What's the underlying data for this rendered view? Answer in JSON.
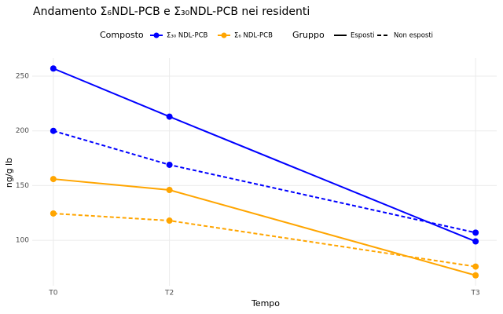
{
  "chart_data": {
    "type": "line",
    "title": "Andamento Σ₆NDL-PCB e Σ₃₀NDL-PCB nei residenti",
    "x_label": "Tempo",
    "y_label": "ng/g lb",
    "color_legend_title": "Composto",
    "linetype_legend_title": "Gruppo",
    "x": [
      0,
      11,
      40
    ],
    "xlim": [
      -2,
      42
    ],
    "xticks": [
      {
        "value": 0,
        "label": "T0"
      },
      {
        "value": 11,
        "label": "T2"
      },
      {
        "value": 40,
        "label": "T3"
      }
    ],
    "ylim": [
      58.5,
      266.5
    ],
    "yticks": [
      100,
      150,
      200,
      250
    ],
    "grid": true,
    "groups": [
      {
        "name": "Esposti",
        "dash": "solid"
      },
      {
        "name": "Non esposti",
        "dash": "dashed"
      }
    ],
    "series": [
      {
        "name": "Σ₃₀ NDL-PCB",
        "color": "#0000ff",
        "values_by_group": [
          [
            257,
            213,
            99
          ],
          [
            200,
            169,
            107
          ]
        ]
      },
      {
        "name": "Σ₆ NDL-PCB",
        "color": "#ffa500",
        "values_by_group": [
          [
            156,
            146,
            68
          ],
          [
            124.5,
            118,
            76
          ]
        ]
      }
    ]
  }
}
